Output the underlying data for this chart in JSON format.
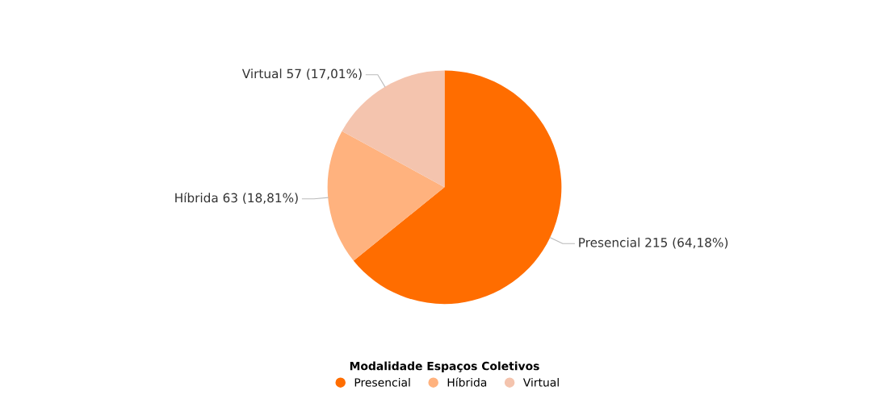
{
  "chart_data": {
    "type": "pie",
    "categories": [
      "Presencial",
      "Híbrida",
      "Virtual"
    ],
    "values": [
      215,
      63,
      57
    ],
    "colors": [
      "#ff6d00",
      "#ffb27e",
      "#f4c4ae"
    ],
    "value_labels": [
      "Presencial 215 (64,18%)",
      "Híbrida 63 (18,81%)",
      "Virtual 57 (17,01%)"
    ],
    "legend_title": "Modalidade Espaços Coletivos",
    "legend": "bottom"
  }
}
